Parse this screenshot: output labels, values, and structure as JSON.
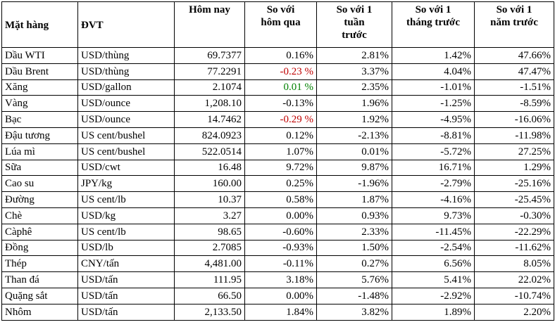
{
  "table": {
    "headers": [
      "Mặt hàng",
      "ĐVT",
      "Hôm nay",
      "So với\nhôm qua",
      "So với 1\ntuần\ntrước",
      "So với 1\ntháng trước",
      "So với 1\nnăm trước"
    ],
    "rows": [
      [
        "Dầu WTI",
        "USD/thùng",
        "69.7377",
        "0.16%",
        "2.81%",
        "1.42%",
        "47.66%"
      ],
      [
        "Dầu Brent",
        "USD/thùng",
        "77.2291",
        "-0.23 %",
        "3.37%",
        "4.04%",
        "47.47%"
      ],
      [
        "Xăng",
        "USD/gallon",
        "2.1074",
        "0.01 %",
        "2.35%",
        "-1.01%",
        "-1.51%"
      ],
      [
        "Vàng",
        "USD/ounce",
        "1,208.10",
        "-0.13%",
        "1.96%",
        "-1.25%",
        "-8.59%"
      ],
      [
        "Bạc",
        "USD/ounce",
        "14.7462",
        "-0.29 %",
        "1.92%",
        "-4.95%",
        "-16.06%"
      ],
      [
        "Đậu tương",
        "US cent/bushel",
        "824.0923",
        "0.12%",
        "-2.13%",
        "-8.81%",
        "-11.98%"
      ],
      [
        "Lúa mì",
        "US cent/bushel",
        "522.0514",
        "1.07%",
        "0.01%",
        "-5.72%",
        "27.25%"
      ],
      [
        "Sữa",
        "USD/cwt",
        "16.48",
        "9.72%",
        "9.87%",
        "16.71%",
        "1.29%"
      ],
      [
        "Cao su",
        "JPY/kg",
        "160.00",
        "0.25%",
        "-1.96%",
        "-2.79%",
        "-25.16%"
      ],
      [
        "Đường",
        "US cent/lb",
        "10.37",
        "0.58%",
        "1.87%",
        "-4.16%",
        "-25.45%"
      ],
      [
        "Chè",
        "USD/kg",
        "3.27",
        "0.00%",
        "0.93%",
        "9.73%",
        "-0.30%"
      ],
      [
        "Càphê",
        "US cent/lb",
        "98.65",
        "-0.60%",
        "2.33%",
        "-11.45%",
        "-22.29%"
      ],
      [
        "Đồng",
        "USD/lb",
        "2.7085",
        "-0.93%",
        "1.50%",
        "-2.54%",
        "-11.62%"
      ],
      [
        "Thép",
        "CNY/tấn",
        "4,481.00",
        "-0.11%",
        "0.27%",
        "6.56%",
        "8.05%"
      ],
      [
        "Than đá",
        "USD/tấn",
        "111.95",
        "3.18%",
        "5.76%",
        "5.41%",
        "22.02%"
      ],
      [
        "Quặng sắt",
        "USD/tấn",
        "66.50",
        "0.00%",
        "-1.48%",
        "-2.92%",
        "-10.74%"
      ],
      [
        "Nhôm",
        "USD/tấn",
        "2,133.50",
        "1.84%",
        "3.82%",
        "1.89%",
        "2.20%"
      ]
    ]
  }
}
